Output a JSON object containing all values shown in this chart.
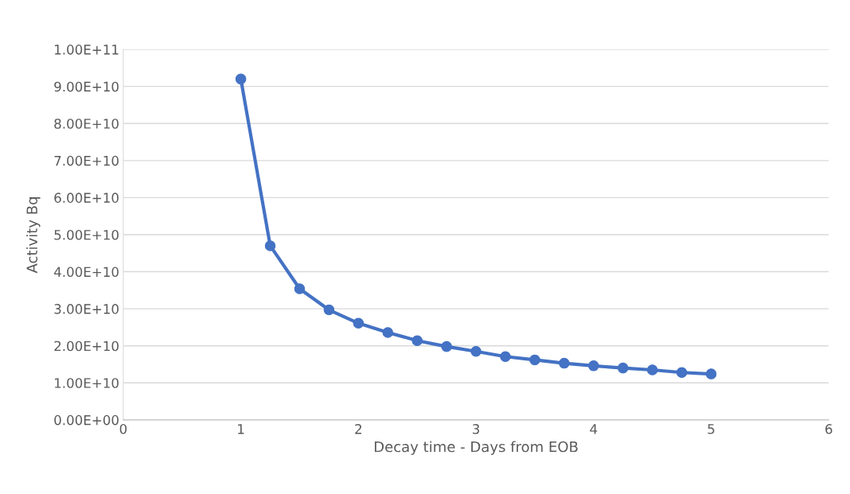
{
  "chart_data": {
    "type": "line",
    "xlabel": "Decay time - Days from EOB",
    "ylabel": "Activity Bq",
    "x": [
      1,
      1.25,
      1.5,
      1.75,
      2,
      2.25,
      2.5,
      2.75,
      3,
      3.25,
      3.5,
      3.75,
      4,
      4.25,
      4.5,
      4.75,
      5
    ],
    "series": [
      {
        "color": "#4472c4",
        "values": [
          92000000000.0,
          47000000000.0,
          35400000000.0,
          29700000000.0,
          26100000000.0,
          23600000000.0,
          21400000000.0,
          19800000000.0,
          18500000000.0,
          17100000000.0,
          16200000000.0,
          15300000000.0,
          14600000000.0,
          14000000000.0,
          13500000000.0,
          12800000000.0,
          12400000000.0
        ]
      }
    ],
    "xlim": [
      0,
      6
    ],
    "xticks": [
      0,
      1,
      2,
      3,
      4,
      5,
      6
    ],
    "ylim": [
      0,
      100000000000.0
    ],
    "yticks": [
      {
        "value": 0,
        "label": "0.00E+00"
      },
      {
        "value": 10000000000.0,
        "label": "1.00E+10"
      },
      {
        "value": 20000000000.0,
        "label": "2.00E+10"
      },
      {
        "value": 30000000000.0,
        "label": "3.00E+10"
      },
      {
        "value": 40000000000.0,
        "label": "4.00E+10"
      },
      {
        "value": 50000000000.0,
        "label": "5.00E+10"
      },
      {
        "value": 60000000000.0,
        "label": "6.00E+10"
      },
      {
        "value": 70000000000.0,
        "label": "7.00E+10"
      },
      {
        "value": 80000000000.0,
        "label": "8.00E+10"
      },
      {
        "value": 90000000000.0,
        "label": "9.00E+10"
      },
      {
        "value": 100000000000.0,
        "label": "1.00E+11"
      }
    ],
    "grid": "y",
    "marker": "circle",
    "line_style": "solid"
  }
}
